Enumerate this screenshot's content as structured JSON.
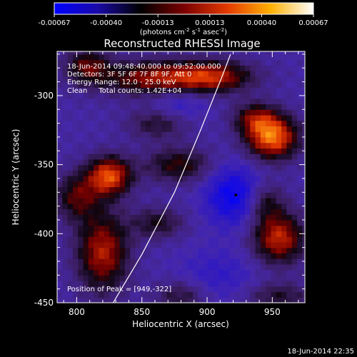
{
  "colorbar": {
    "ticks": [
      "-0.00067",
      "-0.00040",
      "-0.00013",
      "0.00013",
      "0.00040",
      "0.00067"
    ],
    "unit_prefix": "(photons cm",
    "unit_exp1": "-2",
    "unit_mid": " s",
    "unit_exp2": "-1",
    "unit_mid2": " asec",
    "unit_exp3": "-2",
    "unit_suffix": ")",
    "colors": [
      "#0000ff",
      "#1a0aa8",
      "#000000",
      "#7a0000",
      "#e33a00",
      "#ffb000",
      "#ffffff"
    ]
  },
  "plot": {
    "annotation_lines": [
      "18-Jun-2014 09:48:40.000 to 09:52:00.000",
      "Detectors: 3F 5F 6F 7F 8F 9F, Att 0",
      "Energy Range: 12.0 - 25.0 keV",
      "Clean     Total counts: 1.42E+04"
    ],
    "peak_label": "Position of Peak = [949,-322]",
    "footer_timestamp": "18-Jun-2014 22:35"
  },
  "chart_data": {
    "type": "heatmap",
    "title": "Reconstructed RHESSI Image",
    "xlabel": "Heliocentric X (arcsec)",
    "ylabel": "Heliocentric Y (arcsec)",
    "xlim": [
      785,
      975
    ],
    "ylim": [
      -450,
      -268
    ],
    "x_ticks": [
      800,
      850,
      900,
      950
    ],
    "y_ticks": [
      -300,
      -350,
      -400,
      -450
    ],
    "color_range": [
      -0.00067,
      0.00067
    ],
    "peak": [
      949,
      -322
    ],
    "minimum_marker": [
      922,
      -372
    ],
    "limb_curve": [
      [
        828,
        -450
      ],
      [
        850,
        -415
      ],
      [
        875,
        -370
      ],
      [
        895,
        -325
      ],
      [
        912,
        -285
      ],
      [
        918,
        -270
      ]
    ],
    "features": [
      {
        "x": 950,
        "y": -330,
        "level": 0.00062,
        "sx": 14,
        "sy": 11
      },
      {
        "x": 937,
        "y": -316,
        "level": 0.0003,
        "sx": 12,
        "sy": 8
      },
      {
        "x": 825,
        "y": -358,
        "level": 0.00056,
        "sx": 12,
        "sy": 10
      },
      {
        "x": 800,
        "y": -373,
        "level": 0.0003,
        "sx": 12,
        "sy": 12
      },
      {
        "x": 860,
        "y": -287,
        "level": 0.0004,
        "sx": 30,
        "sy": 9
      },
      {
        "x": 808,
        "y": -278,
        "level": 0.0003,
        "sx": 12,
        "sy": 9
      },
      {
        "x": 905,
        "y": -286,
        "level": 0.00038,
        "sx": 22,
        "sy": 8
      },
      {
        "x": 820,
        "y": -413,
        "level": 0.00045,
        "sx": 14,
        "sy": 20
      },
      {
        "x": 955,
        "y": -403,
        "level": 0.00048,
        "sx": 14,
        "sy": 13
      },
      {
        "x": 945,
        "y": -377,
        "level": 0.00022,
        "sx": 10,
        "sy": 10
      },
      {
        "x": 878,
        "y": -350,
        "level": 0.00028,
        "sx": 18,
        "sy": 9
      },
      {
        "x": 862,
        "y": -320,
        "level": 0.0002,
        "sx": 16,
        "sy": 8
      },
      {
        "x": 862,
        "y": -392,
        "level": 0.00022,
        "sx": 14,
        "sy": 8
      },
      {
        "x": 880,
        "y": -445,
        "level": 0.0002,
        "sx": 14,
        "sy": 8
      },
      {
        "x": 955,
        "y": -445,
        "level": 0.0002,
        "sx": 18,
        "sy": 7
      },
      {
        "x": 920,
        "y": -372,
        "level": -0.00038,
        "sx": 15,
        "sy": 15
      },
      {
        "x": 878,
        "y": -305,
        "level": -0.0002,
        "sx": 15,
        "sy": 9
      },
      {
        "x": 908,
        "y": -430,
        "level": -0.00018,
        "sx": 22,
        "sy": 14
      }
    ]
  }
}
